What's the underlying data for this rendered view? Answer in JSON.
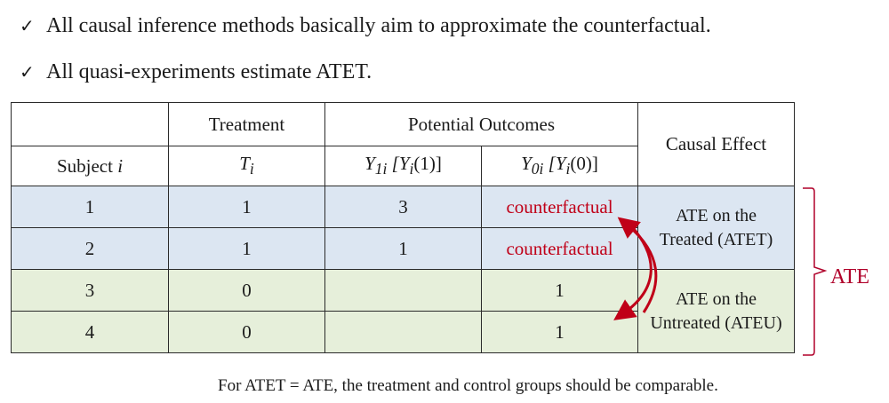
{
  "bullets": [
    {
      "icon": "check-icon",
      "text": "All causal inference methods basically aim to approximate the counterfactual."
    },
    {
      "icon": "check-icon",
      "text": "All quasi-experiments estimate ATET."
    }
  ],
  "table": {
    "header_treatment": "Treatment",
    "header_potential": "Potential Outcomes",
    "header_causal": "Causal Effect",
    "sub_subject": "Subject",
    "sub_subject_var": "i",
    "sub_T": "T",
    "sub_T_sub": "i",
    "sub_Y1": "Y",
    "sub_Y1_sub": "1i",
    "sub_Y1_bracket": " [Y",
    "sub_Y1_bracket_sub": "i",
    "sub_Y1_tail": "(1)]",
    "sub_Y0": "Y",
    "sub_Y0_sub": "0i",
    "sub_Y0_bracket": " [Y",
    "sub_Y0_bracket_sub": "i",
    "sub_Y0_tail": "(0)]",
    "rows": [
      {
        "subject": "1",
        "treatment": "1",
        "y1": "3",
        "y0": "counterfactual"
      },
      {
        "subject": "2",
        "treatment": "1",
        "y1": "1",
        "y0": "counterfactual"
      },
      {
        "subject": "3",
        "treatment": "0",
        "y1": "",
        "y0": "1"
      },
      {
        "subject": "4",
        "treatment": "0",
        "y1": "",
        "y0": "1"
      }
    ],
    "atet_line1": "ATE on the",
    "atet_line2": "Treated (ATET)",
    "ateu_line1": "ATE on the",
    "ateu_line2": "Untreated (ATEU)"
  },
  "ate_label": "ATE",
  "footer": "For ATET = ATE, the treatment and control groups should be comparable.",
  "colors": {
    "treated_fill": "#dce6f2",
    "untreated_fill": "#e6efda",
    "counterfactual_text": "#c00018",
    "brace": "#b0002a"
  }
}
